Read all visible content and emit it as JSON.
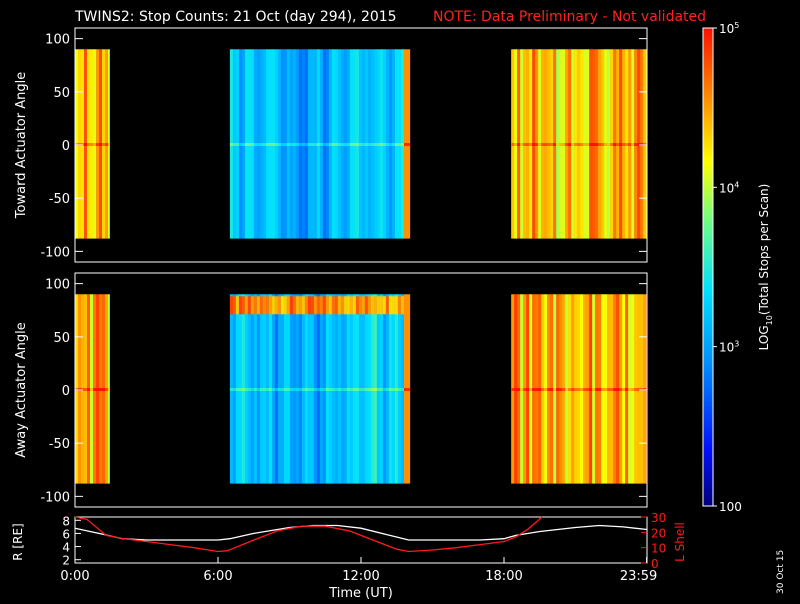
{
  "header": {
    "title": "TWINS2: Stop Counts: 21 Oct (day 294), 2015",
    "note": "NOTE: Data Preliminary - Not validated"
  },
  "footer": {
    "xlabel": "Time (UT)",
    "date_stamp": "30 Oct 15"
  },
  "chart_data": [
    {
      "type": "heatmap",
      "panel": "top",
      "ylabel": "Toward Actuator Angle",
      "ylim": [
        -110,
        110
      ],
      "yticks": [
        -100,
        -50,
        0,
        50,
        100
      ],
      "xlim_hours": [
        0,
        24
      ],
      "data_range_deg": [
        -88,
        90
      ],
      "data_intervals_hours": [
        [
          0.0,
          1.45
        ],
        [
          6.5,
          14.05
        ],
        [
          18.3,
          23.98
        ]
      ],
      "colorscale": "rainbow-log",
      "clim": [
        100,
        100000
      ],
      "grid": false
    },
    {
      "type": "heatmap",
      "panel": "middle",
      "ylabel": "Away Actuator Angle",
      "ylim": [
        -110,
        110
      ],
      "yticks": [
        -100,
        -50,
        0,
        50,
        100
      ],
      "xlim_hours": [
        0,
        24
      ],
      "data_range_deg": [
        -88,
        90
      ],
      "data_intervals_hours": [
        [
          0.0,
          1.45
        ],
        [
          6.5,
          14.05
        ],
        [
          18.3,
          23.98
        ]
      ],
      "colorscale": "rainbow-log",
      "clim": [
        100,
        100000
      ],
      "grid": false
    },
    {
      "type": "line",
      "panel": "bottom",
      "ylabel_left": "R [RE]",
      "ylabel_right": "L Shell",
      "yticks_left": [
        2,
        4,
        6,
        8
      ],
      "ylim_left": [
        1.5,
        8.5
      ],
      "yticks_right": [
        0,
        10,
        20,
        30
      ],
      "ylim_right": [
        0,
        30
      ],
      "xticks": [
        "0:00",
        "6:00",
        "12:00",
        "18:00",
        "23:59"
      ],
      "series": [
        {
          "name": "R",
          "color": "#ffffff",
          "axis": "left",
          "x": [
            0,
            1,
            2,
            3,
            4,
            5,
            6,
            6.5,
            7.5,
            9,
            10,
            11,
            12,
            13,
            14,
            15,
            16,
            17,
            18,
            18.5,
            19.5,
            21,
            22,
            23,
            24
          ],
          "y": [
            6.8,
            6.0,
            5.2,
            5.0,
            5.0,
            5.0,
            5.0,
            5.2,
            6.0,
            6.9,
            7.2,
            7.2,
            6.8,
            5.9,
            5.0,
            5.0,
            5.0,
            5.0,
            5.2,
            5.7,
            6.3,
            6.9,
            7.2,
            7.0,
            6.6
          ]
        },
        {
          "name": "L Shell",
          "color": "#ff1a1a",
          "axis": "right",
          "x": [
            0,
            0.5,
            1.3,
            2,
            3,
            4,
            5,
            6,
            6.4,
            7.5,
            8.5,
            9.5,
            10.5,
            11.5,
            12.5,
            13.5,
            14,
            15,
            16,
            17,
            18,
            18.5,
            19,
            19.6
          ],
          "y": [
            30,
            28.5,
            18,
            16,
            14,
            12,
            10,
            7.5,
            8,
            15,
            21,
            24,
            24,
            21,
            15,
            9,
            7.5,
            8.5,
            10,
            12,
            14,
            17,
            22,
            30
          ]
        }
      ]
    },
    {
      "type": "colorbar",
      "label": "LOG10(Total Stops per Scan)",
      "label_base": "LOG",
      "label_sub": "10",
      "label_rest": "(Total Stops per Scan)",
      "ticks": [
        {
          "base": "10",
          "exp": "5",
          "value": 100000
        },
        {
          "base": "10",
          "exp": "4",
          "value": 10000
        },
        {
          "base": "10",
          "exp": "3",
          "value": 1000
        },
        {
          "base": "100",
          "exp": "",
          "value": 100
        }
      ]
    }
  ],
  "colors": {
    "note": "#ff2020",
    "rlength_line": "#ffffff",
    "lshell_line": "#ff1a1a"
  }
}
